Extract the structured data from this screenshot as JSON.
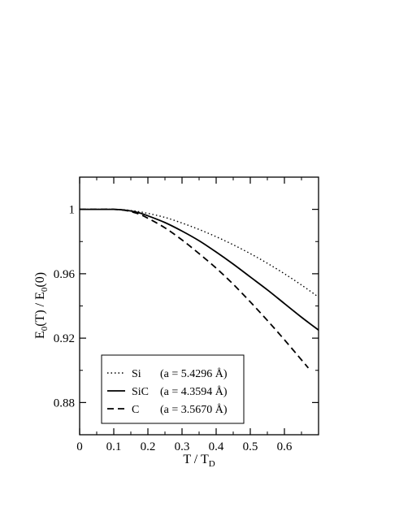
{
  "chart_data": {
    "type": "line",
    "title": "",
    "xlabel": "T / T",
    "xlabel_sub": "D",
    "ylabel": {
      "parts": [
        {
          "t": "E"
        },
        {
          "t": "0",
          "sub": true
        },
        {
          "t": "(T) / E"
        },
        {
          "t": "0",
          "sub": true
        },
        {
          "t": "(0)"
        }
      ]
    },
    "xlim": [
      0,
      0.7
    ],
    "ylim": [
      0.86,
      1.02
    ],
    "xticks": [
      0,
      0.1,
      0.2,
      0.3,
      0.4,
      0.5,
      0.6
    ],
    "xtick_labels": [
      "0",
      "0.1",
      "0.2",
      "0.3",
      "0.4",
      "0.5",
      "0.6"
    ],
    "yticks": [
      0.88,
      0.92,
      0.96,
      1.0
    ],
    "ytick_labels": [
      "0.88",
      "0.92",
      "0.96",
      "1"
    ],
    "grid": false,
    "legend_position": "bottom-left",
    "series": [
      {
        "name": "Si",
        "label": "(a = 5.4296 Å)",
        "style": "dotted",
        "color": "#000000",
        "x": [
          0,
          0.05,
          0.1,
          0.125,
          0.15,
          0.175,
          0.2,
          0.25,
          0.3,
          0.35,
          0.4,
          0.45,
          0.5,
          0.55,
          0.6,
          0.65,
          0.7
        ],
        "y": [
          1.0,
          1.0,
          1.0,
          0.9998,
          0.9993,
          0.9985,
          0.9975,
          0.995,
          0.9915,
          0.9875,
          0.983,
          0.978,
          0.9725,
          0.9665,
          0.96,
          0.953,
          0.9455
        ]
      },
      {
        "name": "SiC",
        "label": "(a = 4.3594 Å)",
        "style": "solid",
        "color": "#000000",
        "x": [
          0,
          0.05,
          0.1,
          0.125,
          0.15,
          0.175,
          0.2,
          0.25,
          0.3,
          0.35,
          0.4,
          0.45,
          0.5,
          0.55,
          0.6,
          0.65,
          0.7
        ],
        "y": [
          1.0,
          1.0,
          1.0,
          0.9997,
          0.999,
          0.9978,
          0.996,
          0.9918,
          0.9865,
          0.9805,
          0.9735,
          0.966,
          0.958,
          0.95,
          0.9415,
          0.933,
          0.925
        ]
      },
      {
        "name": "C",
        "label": "(a = 3.5670 Å)",
        "style": "dashed",
        "color": "#000000",
        "x": [
          0,
          0.05,
          0.1,
          0.125,
          0.15,
          0.175,
          0.2,
          0.25,
          0.3,
          0.35,
          0.4,
          0.45,
          0.5,
          0.55,
          0.6,
          0.65,
          0.67
        ],
        "y": [
          1.0,
          1.0,
          1.0,
          0.9996,
          0.9986,
          0.997,
          0.9945,
          0.9885,
          0.981,
          0.9725,
          0.9635,
          0.9535,
          0.9425,
          0.931,
          0.919,
          0.9065,
          0.9015
        ]
      }
    ]
  }
}
